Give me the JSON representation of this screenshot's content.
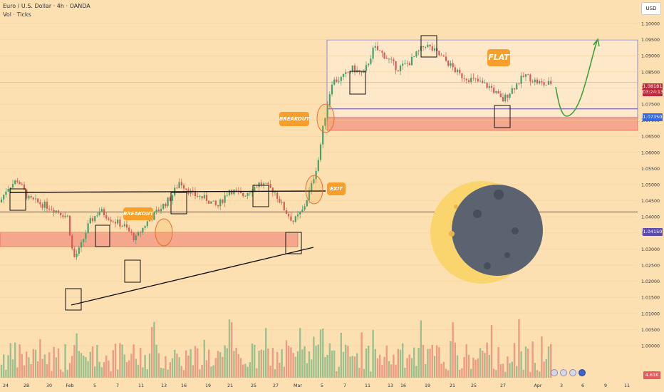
{
  "header": {
    "title": "Euro / U.S. Dollar · 4h · OANDA",
    "indicator": "Vol · Ticks",
    "currency_button": "USD"
  },
  "annotations": {
    "breakout_upper": "BREAKOUT",
    "breakout_lower": "BREAKOUT",
    "exit": "EXIT",
    "flat": "FLAT"
  },
  "price_tags": {
    "last_price": "1.08181",
    "countdown": "03:24:13",
    "support_upper": "1.07350",
    "support_lower": "1.04150",
    "volume": "4.61K"
  },
  "colors": {
    "background": "#fde0b2",
    "bull": "#47a06c",
    "bear": "#d65a55",
    "zone": "#f4a48a",
    "accent": "#f6a02b",
    "level": "#5b4ab0",
    "projection": "#3ea23a"
  },
  "y_axis_labels": [
    "1.10000",
    "1.09500",
    "1.09000",
    "1.08500",
    "1.08000",
    "1.07500",
    "1.07000",
    "1.06500",
    "1.06000",
    "1.05500",
    "1.05000",
    "1.04500",
    "1.04000",
    "1.03500",
    "1.03000",
    "1.02500",
    "1.02000",
    "1.01500",
    "1.01000",
    "1.00500",
    "1.00000"
  ],
  "x_axis_labels": [
    "24",
    "28",
    "30",
    "Feb",
    "5",
    "7",
    "11",
    "13",
    "16",
    "19",
    "21",
    "25",
    "27",
    "Mar",
    "5",
    "7",
    "11",
    "13",
    "16",
    "19",
    "21",
    "25",
    "27",
    "Apr",
    "3",
    "6",
    "9",
    "11"
  ],
  "chart_data": {
    "type": "candlestick",
    "symbol": "Euro / U.S. Dollar",
    "timeframe": "4h",
    "source": "OANDA",
    "ylim": [
      1.0,
      1.1
    ],
    "horizontal_levels": [
      1.0735,
      1.0415
    ],
    "last_price": 1.08181,
    "trend_notes": [
      "BREAKOUT",
      "EXIT",
      "BREAKOUT",
      "FLAT"
    ]
  },
  "icons": {
    "moon": "moon-icon",
    "flags": [
      "us-flag-icon",
      "us-flag-icon",
      "us-flag-icon",
      "eu-flag-icon"
    ]
  }
}
